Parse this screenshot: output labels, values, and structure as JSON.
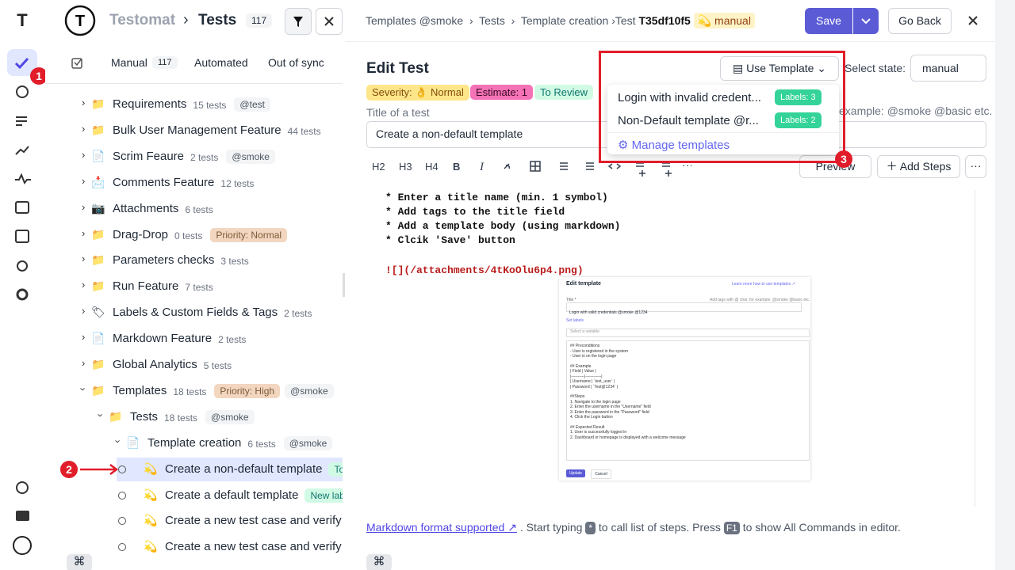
{
  "rail": {
    "badge": "1"
  },
  "sidebar": {
    "brand": "Testomat",
    "separator": "›",
    "title": "Tests",
    "count": "117",
    "tabs": [
      {
        "label": "Manual",
        "count": "117"
      },
      {
        "label": "Automated"
      },
      {
        "label": "Out of sync"
      }
    ],
    "tree": [
      {
        "name": "Requirements",
        "tests": "15 tests",
        "tags": [
          "@test"
        ]
      },
      {
        "name": "Bulk User Management Feature",
        "tests": "44 tests"
      },
      {
        "name": "Scrim Feaure",
        "tests": "2 tests",
        "tags": [
          "@smoke"
        ]
      },
      {
        "name": "Comments Feature",
        "tests": "12 tests"
      },
      {
        "name": "Attachments",
        "tests": "6 tests"
      },
      {
        "name": "Drag-Drop",
        "tests": "0 tests",
        "tags": [
          "Priority: Normal"
        ]
      },
      {
        "name": "Parameters checks",
        "tests": "3 tests"
      },
      {
        "name": "Run Feature",
        "tests": "7 tests"
      },
      {
        "name": "Labels & Custom Fields & Tags",
        "tests": "2 tests"
      },
      {
        "name": "Markdown Feature",
        "tests": "2 tests"
      },
      {
        "name": "Global Analytics",
        "tests": "5 tests"
      },
      {
        "name": "Templates",
        "tests": "18 tests",
        "tags": [
          "Priority: High",
          "@smoke"
        ]
      },
      {
        "name": "Tests",
        "tests": "18 tests",
        "tags": [
          "@smoke"
        ]
      },
      {
        "name": "Template creation",
        "tests": "6 tests",
        "tags": [
          "@smoke"
        ]
      },
      {
        "name": "Create a non-default template",
        "tags": [
          "To"
        ]
      },
      {
        "name": "Create a default template",
        "tags": [
          "New labe"
        ]
      },
      {
        "name": "Create a new test case and verify"
      },
      {
        "name": "Create a new test case and verify"
      }
    ],
    "pointer_badge": "2"
  },
  "main": {
    "breadcrumb": [
      "Templates @smoke",
      "›",
      "Tests",
      "›",
      "Template creation",
      "›Test",
      "T35df10f5",
      "manual"
    ],
    "save": "Save",
    "go_back": "Go Back",
    "heading": "Edit Test",
    "chips": [
      "Severity: 👌 Normal",
      "Estimate: 1",
      "To Review"
    ],
    "use_template": "Use Template",
    "state_label": "Select state:",
    "state_value": "manual",
    "title_label": "Title of a test",
    "title_value": "Create a non-default template",
    "tags_placeholder": "example: @smoke @basic etc.",
    "toolbar": [
      "H2",
      "H3",
      "H4",
      "B",
      "I"
    ],
    "preview": "Preview",
    "add_steps": "Add Steps",
    "editor_lines": [
      "* Enter a title name (min. 1 symbol)",
      "* Add tags to the title field",
      "* Add a template body (using markdown)",
      "* Clcik 'Save' button"
    ],
    "image_link": "![](/attachments/4tKoOlu6p4.png)",
    "screenshot": {
      "title": "Edit template",
      "help": "Learn more how to use templates ↗",
      "title_label": "Title *",
      "title_value": "Login with valid credentials @smoke @1234",
      "tags_hint": "Add tags with @ char, for example: @smoke @basic etc.",
      "set_labels": "Set labels",
      "variable": "Select a variable",
      "lines": [
        "## Preconditions",
        "- User is registered in the system",
        "- User is on the login page",
        "## Example",
        "| Field    | Value      |",
        "|----------|------------|",
        "| Username | `test_user` |",
        "| Password | `Test@1234` |",
        "##Steps",
        "1. Navigate to the login page",
        "2. Enter the username in the \"Username\" field",
        "3. Enter the password in the \"Password\" field",
        "4. Click the Login button",
        "## Expected Result",
        "1. User is successfully logged in",
        "2. Dashboard or homepage is displayed with a welcome message"
      ],
      "update": "Update",
      "cancel": "Cancel"
    },
    "footer": [
      "Markdown format supported ↗",
      ". Start typing",
      "*",
      "to call list of steps. Press",
      "F1",
      "to show All Commands in editor."
    ]
  },
  "dropdown": {
    "items": [
      {
        "name": "Login with invalid credent...",
        "labels": "Labels: 3"
      },
      {
        "name": "Non-Default template @r...",
        "labels": "Labels: 2"
      }
    ],
    "manage": "Manage templates",
    "badge": "3"
  }
}
